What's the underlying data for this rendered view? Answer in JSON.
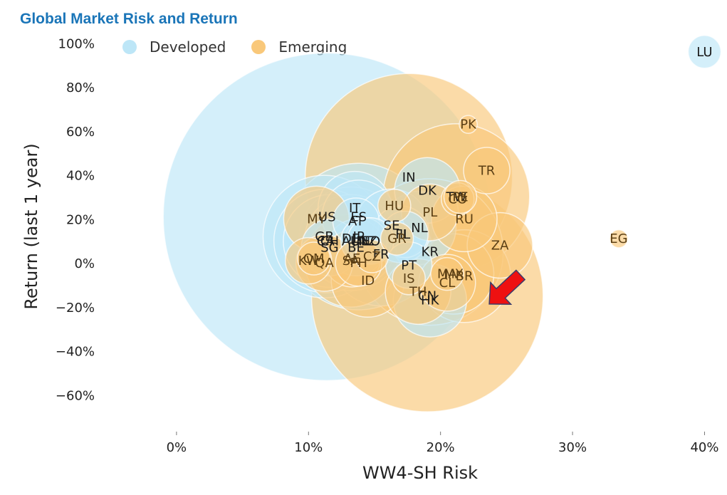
{
  "title": "Global Market Risk and Return",
  "colors": {
    "title": "#1a75b8",
    "Developed": "#bde6f7",
    "Emerging": "#f9c87a",
    "arrow": "#ee1111"
  },
  "chart_data": {
    "type": "scatter",
    "title": "Global Market Risk and Return",
    "xlabel": "WW4-SH Risk",
    "ylabel": "Return (last 1 year)",
    "xlim": [
      -0.035,
      0.41
    ],
    "ylim": [
      -0.78,
      1.05
    ],
    "x_ticks": [
      0,
      0.1,
      0.2,
      0.3,
      0.4
    ],
    "x_tick_labels": [
      "0%",
      "10%",
      "20%",
      "30%",
      "40%"
    ],
    "y_ticks": [
      1.0,
      0.8,
      0.6,
      0.4,
      0.2,
      0.0,
      -0.2,
      -0.4,
      -0.6
    ],
    "y_tick_labels": [
      "100%",
      "80%",
      "60%",
      "40%",
      "20%",
      "0%",
      "−20%",
      "−40%",
      "−60%"
    ],
    "grid": false,
    "legend_position": "top-left",
    "legend": [
      "Developed",
      "Emerging"
    ],
    "series": [
      {
        "name": "Developed",
        "points": [
          {
            "label": "US",
            "x": 0.114,
            "y": 0.21,
            "size": 100
          },
          {
            "label": "JP",
            "x": 0.138,
            "y": 0.12,
            "size": 20
          },
          {
            "label": "GB",
            "x": 0.112,
            "y": 0.12,
            "size": 14
          },
          {
            "label": "FR",
            "x": 0.155,
            "y": 0.04,
            "size": 10
          },
          {
            "label": "DE",
            "x": 0.132,
            "y": 0.11,
            "size": 10
          },
          {
            "label": "CA",
            "x": 0.113,
            "y": 0.1,
            "size": 10
          },
          {
            "label": "CH",
            "x": 0.116,
            "y": 0.1,
            "size": 8
          },
          {
            "label": "AU",
            "x": 0.132,
            "y": 0.1,
            "size": 8
          },
          {
            "label": "NL",
            "x": 0.184,
            "y": 0.16,
            "size": 5
          },
          {
            "label": "IT",
            "x": 0.135,
            "y": 0.25,
            "size": 5
          },
          {
            "label": "ES",
            "x": 0.138,
            "y": 0.21,
            "size": 5
          },
          {
            "label": "SE",
            "x": 0.163,
            "y": 0.17,
            "size": 5
          },
          {
            "label": "HK",
            "x": 0.192,
            "y": -0.17,
            "size": 5
          },
          {
            "label": "DK",
            "x": 0.19,
            "y": 0.33,
            "size": 4
          },
          {
            "label": "FI",
            "x": 0.17,
            "y": 0.13,
            "size": 3
          },
          {
            "label": "BE",
            "x": 0.136,
            "y": 0.07,
            "size": 3
          },
          {
            "label": "SG",
            "x": 0.116,
            "y": 0.07,
            "size": 3
          },
          {
            "label": "IL",
            "x": 0.173,
            "y": 0.13,
            "size": 2
          },
          {
            "label": "AT",
            "x": 0.136,
            "y": 0.19,
            "size": 2
          },
          {
            "label": "NZ",
            "x": 0.145,
            "y": 0.1,
            "size": 2
          },
          {
            "label": "IE",
            "x": 0.142,
            "y": 0.1,
            "size": 2
          },
          {
            "label": "NO",
            "x": 0.147,
            "y": 0.1,
            "size": 2
          },
          {
            "label": "PT",
            "x": 0.176,
            "y": -0.01,
            "size": 2
          },
          {
            "label": "LU",
            "x": 0.4,
            "y": 0.96,
            "size": 1
          }
        ]
      },
      {
        "name": "Emerging",
        "points": [
          {
            "label": "CN",
            "x": 0.19,
            "y": -0.15,
            "size": 50
          },
          {
            "label": "IN",
            "x": 0.176,
            "y": 0.39,
            "size": 40
          },
          {
            "label": "TW",
            "x": 0.212,
            "y": 0.3,
            "size": 20
          },
          {
            "label": "KR",
            "x": 0.192,
            "y": 0.05,
            "size": 20
          },
          {
            "label": "BR",
            "x": 0.218,
            "y": -0.06,
            "size": 8
          },
          {
            "label": "SA",
            "x": 0.132,
            "y": 0.01,
            "size": 8
          },
          {
            "label": "ZA",
            "x": 0.245,
            "y": 0.08,
            "size": 4
          },
          {
            "label": "MX",
            "x": 0.21,
            "y": -0.05,
            "size": 6
          },
          {
            "label": "ID",
            "x": 0.145,
            "y": -0.08,
            "size": 5
          },
          {
            "label": "MY",
            "x": 0.106,
            "y": 0.2,
            "size": 4
          },
          {
            "label": "TH",
            "x": 0.183,
            "y": -0.13,
            "size": 4
          },
          {
            "label": "RU",
            "x": 0.218,
            "y": 0.2,
            "size": 4
          },
          {
            "label": "PL",
            "x": 0.192,
            "y": 0.23,
            "size": 3
          },
          {
            "label": "AE",
            "x": 0.133,
            "y": 0.02,
            "size": 3
          },
          {
            "label": "QA",
            "x": 0.112,
            "y": 0.0,
            "size": 3
          },
          {
            "label": "TR",
            "x": 0.235,
            "y": 0.42,
            "size": 2
          },
          {
            "label": "CL",
            "x": 0.205,
            "y": -0.09,
            "size": 3
          },
          {
            "label": "PH",
            "x": 0.138,
            "y": 0.0,
            "size": 2
          },
          {
            "label": "KW",
            "x": 0.1,
            "y": 0.01,
            "size": 2
          },
          {
            "label": "IS",
            "x": 0.176,
            "y": -0.07,
            "size": 1
          },
          {
            "label": "CZ",
            "x": 0.148,
            "y": 0.03,
            "size": 1
          },
          {
            "label": "HU",
            "x": 0.165,
            "y": 0.26,
            "size": 1
          },
          {
            "label": "GR",
            "x": 0.167,
            "y": 0.11,
            "size": 1
          },
          {
            "label": "CO",
            "x": 0.213,
            "y": 0.29,
            "size": 1
          },
          {
            "label": "PE",
            "x": 0.215,
            "y": 0.3,
            "size": 1
          },
          {
            "label": "OM",
            "x": 0.104,
            "y": 0.02,
            "size": 1
          },
          {
            "label": "MA",
            "x": 0.205,
            "y": -0.05,
            "size": 1
          },
          {
            "label": "PK",
            "x": 0.221,
            "y": 0.63,
            "size": 0.3
          },
          {
            "label": "EG",
            "x": 0.335,
            "y": 0.11,
            "size": 0.3
          }
        ]
      }
    ],
    "annotations": [
      {
        "type": "arrow",
        "color": "red",
        "points_to": "lower-left"
      }
    ]
  }
}
